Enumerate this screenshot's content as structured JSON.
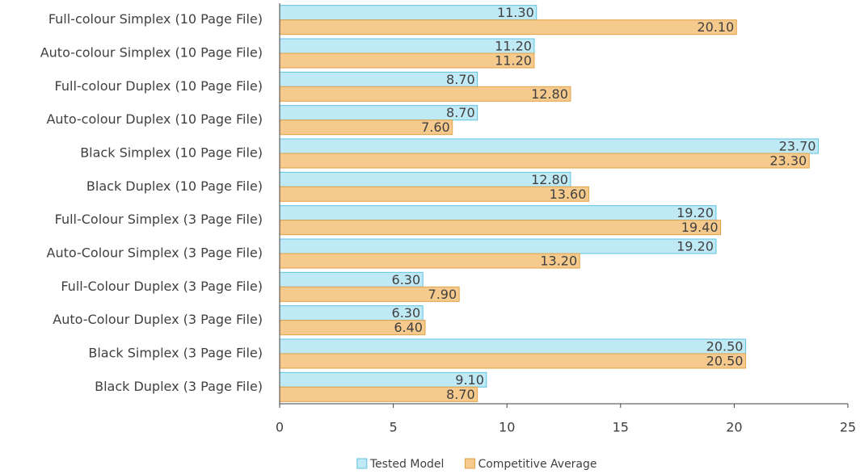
{
  "chart_data": {
    "type": "barh",
    "categories": [
      "Full-colour Simplex (10 Page File)",
      "Auto-colour Simplex (10 Page File)",
      "Full-colour Duplex (10 Page File)",
      "Auto-colour Duplex (10 Page File)",
      "Black Simplex  (10 Page File)",
      "Black Duplex  (10 Page File)",
      "Full-Colour Simplex (3 Page File)",
      "Auto-Colour Simplex (3 Page File)",
      "Full-Colour Duplex (3 Page File)",
      "Auto-Colour Duplex (3 Page File)",
      "Black Simplex  (3 Page File)",
      "Black Duplex  (3 Page File)"
    ],
    "series": [
      {
        "name": "Tested Model",
        "color": "#bfe9f5",
        "stroke": "#5fc3e0",
        "values": [
          11.3,
          11.2,
          8.7,
          8.7,
          23.7,
          12.8,
          19.2,
          19.2,
          6.3,
          6.3,
          20.5,
          9.1
        ],
        "value_labels": [
          "11.30",
          "11.20",
          "8.70",
          "8.70",
          "23.70",
          "12.80",
          "19.20",
          "19.20",
          "6.30",
          "6.30",
          "20.50",
          "9.10"
        ]
      },
      {
        "name": "Competitive Average",
        "color": "#f5ca8c",
        "stroke": "#e0a248",
        "values": [
          20.1,
          11.2,
          12.8,
          7.6,
          23.3,
          13.6,
          19.4,
          13.2,
          7.9,
          6.4,
          20.5,
          8.7
        ],
        "value_labels": [
          "20.10",
          "11.20",
          "12.80",
          "7.60",
          "23.30",
          "13.60",
          "19.40",
          "13.20",
          "7.90",
          "6.40",
          "20.50",
          "8.70"
        ]
      }
    ],
    "xlim": [
      0,
      25
    ],
    "xticks": [
      0,
      5,
      10,
      15,
      20,
      25
    ],
    "legend": "bottom"
  }
}
